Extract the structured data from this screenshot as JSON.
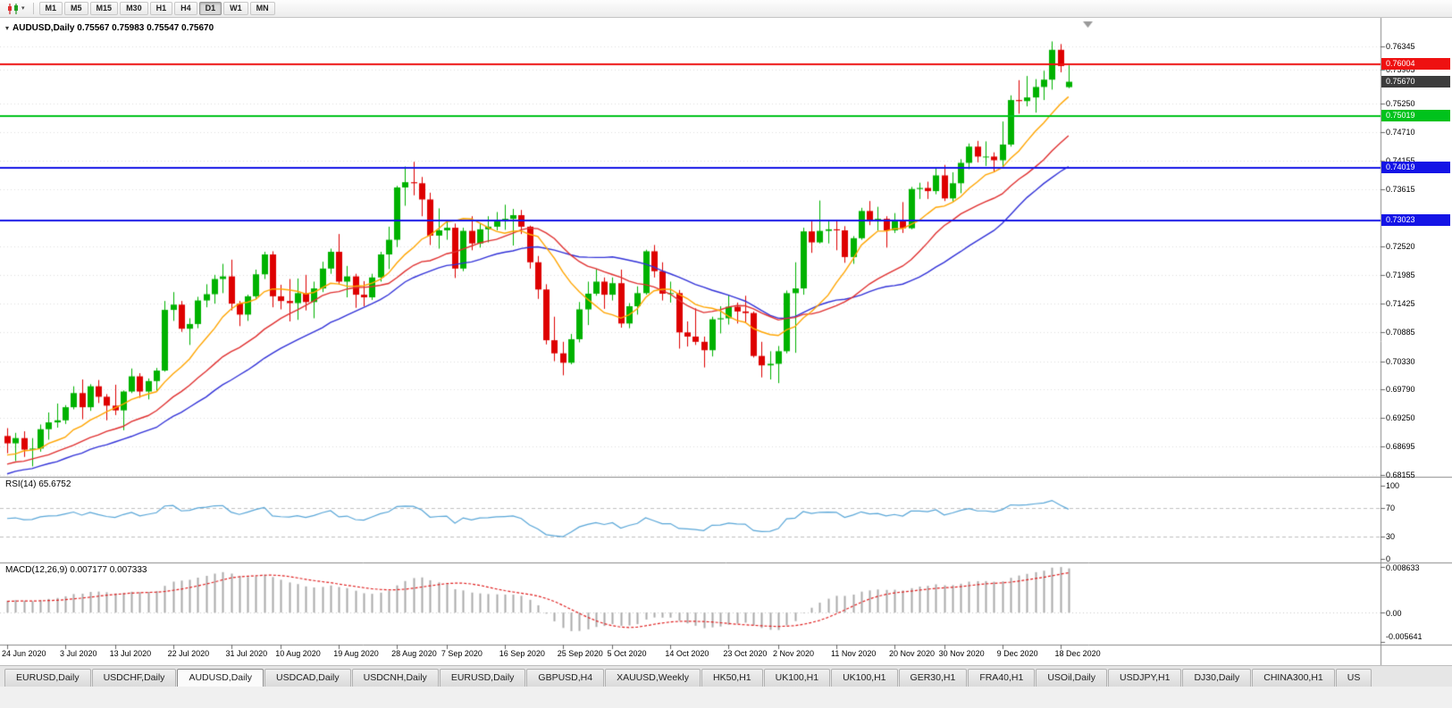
{
  "toolbar": {
    "chart_type_icon": "candlestick-chart-icon",
    "dropdown_icon": "chevron-down-icon",
    "timeframes": [
      "M1",
      "M5",
      "M15",
      "M30",
      "H1",
      "H4",
      "D1",
      "W1",
      "MN"
    ],
    "active_timeframe": "D1"
  },
  "chart": {
    "title": "AUDUSD,Daily 0.75567 0.75983 0.75547 0.75670",
    "symbol": "AUDUSD",
    "period": "Daily",
    "ohlc_display": {
      "open": "0.75567",
      "high": "0.75983",
      "low": "0.75547",
      "close": "0.75670"
    }
  },
  "price_axis": {
    "ticks": [
      "0.76345",
      "0.75905",
      "0.75250",
      "0.74710",
      "0.74155",
      "0.73615",
      "0.72520",
      "0.71985",
      "0.71425",
      "0.70885",
      "0.70330",
      "0.69790",
      "0.69250",
      "0.68695",
      "0.68155"
    ],
    "tags": [
      {
        "value": "0.76004",
        "color": "#EE1111",
        "type": "resistance-line"
      },
      {
        "value": "0.75670",
        "color": "#3C3C3C",
        "type": "current-price"
      },
      {
        "value": "0.75019",
        "color": "#00C21C",
        "type": "support-line"
      },
      {
        "value": "0.74019",
        "color": "#1414E6",
        "type": "support-line"
      },
      {
        "value": "0.73023",
        "color": "#1414E6",
        "type": "support-line"
      }
    ]
  },
  "time_axis": {
    "labels": [
      {
        "text": "24 Jun 2020",
        "i": 0
      },
      {
        "text": "3 Jul 2020",
        "i": 7
      },
      {
        "text": "13 Jul 2020",
        "i": 13
      },
      {
        "text": "22 Jul 2020",
        "i": 20
      },
      {
        "text": "31 Jul 2020",
        "i": 27
      },
      {
        "text": "10 Aug 2020",
        "i": 33
      },
      {
        "text": "19 Aug 2020",
        "i": 40
      },
      {
        "text": "28 Aug 2020",
        "i": 47
      },
      {
        "text": "7 Sep 2020",
        "i": 53
      },
      {
        "text": "16 Sep 2020",
        "i": 60
      },
      {
        "text": "25 Sep 2020",
        "i": 67
      },
      {
        "text": "5 Oct 2020",
        "i": 73
      },
      {
        "text": "14 Oct 2020",
        "i": 80
      },
      {
        "text": "23 Oct 2020",
        "i": 87
      },
      {
        "text": "2 Nov 2020",
        "i": 93
      },
      {
        "text": "11 Nov 2020",
        "i": 100
      },
      {
        "text": "20 Nov 2020",
        "i": 107
      },
      {
        "text": "30 Nov 2020",
        "i": 113
      },
      {
        "text": "9 Dec 2020",
        "i": 120
      },
      {
        "text": "18 Dec 2020",
        "i": 127
      }
    ]
  },
  "indicators": {
    "rsi": {
      "label": "RSI(14) 65.6752",
      "name": "RSI",
      "period": 14,
      "value": "65.6752",
      "levels": [
        "100",
        "70",
        "30",
        "0"
      ]
    },
    "macd": {
      "label": "MACD(12,26,9) 0.007177 0.007333",
      "name": "MACD",
      "params": "12,26,9",
      "value_main": "0.007177",
      "value_signal": "0.007333",
      "scale": [
        "0.008633",
        "0.00",
        "-0.005641"
      ]
    }
  },
  "tabs": {
    "items": [
      {
        "label": "EURUSD,Daily"
      },
      {
        "label": "USDCHF,Daily"
      },
      {
        "label": "AUDUSD,Daily",
        "active": true
      },
      {
        "label": "USDCAD,Daily"
      },
      {
        "label": "USDCNH,Daily"
      },
      {
        "label": "EURUSD,Daily"
      },
      {
        "label": "GBPUSD,H4"
      },
      {
        "label": "XAUUSD,Weekly"
      },
      {
        "label": "HK50,H1"
      },
      {
        "label": "UK100,H1"
      },
      {
        "label": "UK100,H1"
      },
      {
        "label": "GER30,H1"
      },
      {
        "label": "FRA40,H1"
      },
      {
        "label": "USOil,Daily"
      },
      {
        "label": "USDJPY,H1"
      },
      {
        "label": "DJ30,Daily"
      },
      {
        "label": "CHINA300,H1"
      },
      {
        "label": "US"
      }
    ]
  },
  "chart_data": {
    "type": "candlestick",
    "symbol": "AUDUSD",
    "timeframe": "Daily",
    "x_range": [
      "24 Jun 2020",
      "21 Dec 2020"
    ],
    "horizontal_lines": [
      {
        "price": 0.76004,
        "color": "#EE1111"
      },
      {
        "price": 0.75019,
        "color": "#00C21C"
      },
      {
        "price": 0.74019,
        "color": "#1414E6"
      },
      {
        "price": 0.73023,
        "color": "#1414E6"
      }
    ],
    "moving_averages": [
      {
        "period": 30,
        "color": "#3232D8"
      },
      {
        "period": 20,
        "color": "#E03030"
      },
      {
        "period": 10,
        "color": "#FFA500"
      }
    ],
    "up_color": "#00B200",
    "down_color": "#DE0000",
    "candles": [
      [
        0.689,
        0.6905,
        0.6857,
        0.6876
      ],
      [
        0.6876,
        0.6896,
        0.6842,
        0.6886
      ],
      [
        0.6886,
        0.6899,
        0.685,
        0.6864
      ],
      [
        0.6864,
        0.6886,
        0.6832,
        0.6866
      ],
      [
        0.6866,
        0.6912,
        0.686,
        0.6903
      ],
      [
        0.6903,
        0.6935,
        0.6883,
        0.6916
      ],
      [
        0.6916,
        0.6952,
        0.6906,
        0.692
      ],
      [
        0.692,
        0.6949,
        0.6913,
        0.6945
      ],
      [
        0.6945,
        0.6985,
        0.6941,
        0.6972
      ],
      [
        0.6972,
        0.6998,
        0.6922,
        0.6945
      ],
      [
        0.6945,
        0.6989,
        0.6938,
        0.6985
      ],
      [
        0.6985,
        0.6997,
        0.6953,
        0.6965
      ],
      [
        0.6965,
        0.697,
        0.692,
        0.6948
      ],
      [
        0.6948,
        0.6988,
        0.693,
        0.6939
      ],
      [
        0.6939,
        0.6977,
        0.6901,
        0.6975
      ],
      [
        0.6975,
        0.7019,
        0.6972,
        0.7004
      ],
      [
        0.7004,
        0.701,
        0.6963,
        0.6975
      ],
      [
        0.6975,
        0.7,
        0.696,
        0.6995
      ],
      [
        0.6995,
        0.702,
        0.6975,
        0.7015
      ],
      [
        0.7015,
        0.7148,
        0.7013,
        0.7131
      ],
      [
        0.7131,
        0.7165,
        0.711,
        0.7141
      ],
      [
        0.7141,
        0.7148,
        0.7089,
        0.7095
      ],
      [
        0.7095,
        0.7115,
        0.7064,
        0.7104
      ],
      [
        0.7104,
        0.7156,
        0.7096,
        0.7149
      ],
      [
        0.7149,
        0.718,
        0.7136,
        0.7161
      ],
      [
        0.7161,
        0.7198,
        0.7143,
        0.719
      ],
      [
        0.719,
        0.7219,
        0.7163,
        0.7195
      ],
      [
        0.7195,
        0.7227,
        0.713,
        0.7143
      ],
      [
        0.7143,
        0.7148,
        0.71,
        0.7122
      ],
      [
        0.7122,
        0.716,
        0.711,
        0.7157
      ],
      [
        0.7157,
        0.7208,
        0.7152,
        0.7199
      ],
      [
        0.7199,
        0.7242,
        0.719,
        0.7237
      ],
      [
        0.7237,
        0.7243,
        0.7136,
        0.7157
      ],
      [
        0.7157,
        0.7179,
        0.7132,
        0.7148
      ],
      [
        0.7148,
        0.719,
        0.7109,
        0.7144
      ],
      [
        0.7144,
        0.7191,
        0.7112,
        0.7163
      ],
      [
        0.7163,
        0.7198,
        0.713,
        0.7146
      ],
      [
        0.7146,
        0.7185,
        0.7115,
        0.7172
      ],
      [
        0.7172,
        0.7223,
        0.7165,
        0.721
      ],
      [
        0.721,
        0.7248,
        0.72,
        0.7242
      ],
      [
        0.7242,
        0.7276,
        0.718,
        0.7185
      ],
      [
        0.7185,
        0.7215,
        0.7155,
        0.7195
      ],
      [
        0.7195,
        0.72,
        0.7135,
        0.716
      ],
      [
        0.716,
        0.7186,
        0.7138,
        0.7155
      ],
      [
        0.7155,
        0.72,
        0.715,
        0.7193
      ],
      [
        0.7193,
        0.7242,
        0.7185,
        0.7237
      ],
      [
        0.7237,
        0.729,
        0.7209,
        0.7265
      ],
      [
        0.7265,
        0.7368,
        0.7251,
        0.7365
      ],
      [
        0.7365,
        0.7405,
        0.733,
        0.7375
      ],
      [
        0.7375,
        0.7414,
        0.735,
        0.7373
      ],
      [
        0.7373,
        0.7385,
        0.731,
        0.7342
      ],
      [
        0.7342,
        0.7355,
        0.7255,
        0.7273
      ],
      [
        0.7273,
        0.7325,
        0.7248,
        0.7283
      ],
      [
        0.7283,
        0.73,
        0.7265,
        0.7288
      ],
      [
        0.7288,
        0.7296,
        0.7192,
        0.721
      ],
      [
        0.721,
        0.7288,
        0.7205,
        0.7282
      ],
      [
        0.7282,
        0.731,
        0.7245,
        0.7258
      ],
      [
        0.7258,
        0.7295,
        0.725,
        0.7285
      ],
      [
        0.7285,
        0.731,
        0.726,
        0.729
      ],
      [
        0.729,
        0.7318,
        0.7283,
        0.73
      ],
      [
        0.73,
        0.7332,
        0.7284,
        0.7305
      ],
      [
        0.7305,
        0.7324,
        0.7254,
        0.7312
      ],
      [
        0.7312,
        0.7322,
        0.7276,
        0.729
      ],
      [
        0.729,
        0.7292,
        0.721,
        0.7222
      ],
      [
        0.7222,
        0.7234,
        0.7152,
        0.717
      ],
      [
        0.717,
        0.718,
        0.7065,
        0.7073
      ],
      [
        0.7073,
        0.7118,
        0.7033,
        0.7048
      ],
      [
        0.7048,
        0.707,
        0.7006,
        0.703
      ],
      [
        0.703,
        0.7085,
        0.7027,
        0.7075
      ],
      [
        0.7075,
        0.7146,
        0.7069,
        0.7132
      ],
      [
        0.7132,
        0.7185,
        0.7102,
        0.7162
      ],
      [
        0.7162,
        0.7209,
        0.7158,
        0.7185
      ],
      [
        0.7185,
        0.7193,
        0.7133,
        0.716
      ],
      [
        0.716,
        0.7193,
        0.7149,
        0.7182
      ],
      [
        0.7182,
        0.7208,
        0.7097,
        0.7105
      ],
      [
        0.7105,
        0.7144,
        0.7096,
        0.7138
      ],
      [
        0.7138,
        0.7176,
        0.7122,
        0.7163
      ],
      [
        0.7163,
        0.7246,
        0.716,
        0.7243
      ],
      [
        0.7243,
        0.7255,
        0.7193,
        0.7205
      ],
      [
        0.7205,
        0.7222,
        0.7149,
        0.7162
      ],
      [
        0.7162,
        0.7185,
        0.7145,
        0.7163
      ],
      [
        0.7163,
        0.7169,
        0.7057,
        0.7088
      ],
      [
        0.7088,
        0.7109,
        0.7061,
        0.708
      ],
      [
        0.708,
        0.7134,
        0.7064,
        0.707
      ],
      [
        0.707,
        0.708,
        0.7021,
        0.7054
      ],
      [
        0.7054,
        0.7118,
        0.7042,
        0.7113
      ],
      [
        0.7113,
        0.7138,
        0.7086,
        0.7115
      ],
      [
        0.7115,
        0.7159,
        0.7103,
        0.7137
      ],
      [
        0.7137,
        0.7145,
        0.7105,
        0.7128
      ],
      [
        0.7128,
        0.7158,
        0.7107,
        0.7125
      ],
      [
        0.7125,
        0.7128,
        0.704,
        0.7043
      ],
      [
        0.7043,
        0.707,
        0.7002,
        0.7025
      ],
      [
        0.7025,
        0.7052,
        0.6998,
        0.7028
      ],
      [
        0.7028,
        0.7062,
        0.6991,
        0.7052
      ],
      [
        0.7052,
        0.7168,
        0.7048,
        0.7163
      ],
      [
        0.7163,
        0.7222,
        0.7049,
        0.7172
      ],
      [
        0.7172,
        0.7288,
        0.716,
        0.7281
      ],
      [
        0.7281,
        0.73,
        0.724,
        0.726
      ],
      [
        0.726,
        0.734,
        0.7258,
        0.7282
      ],
      [
        0.7282,
        0.7302,
        0.7258,
        0.7285
      ],
      [
        0.7285,
        0.7302,
        0.7245,
        0.7283
      ],
      [
        0.7283,
        0.7291,
        0.7221,
        0.7232
      ],
      [
        0.7232,
        0.7272,
        0.7219,
        0.7268
      ],
      [
        0.7268,
        0.7326,
        0.7265,
        0.732
      ],
      [
        0.732,
        0.7339,
        0.7293,
        0.73
      ],
      [
        0.73,
        0.7328,
        0.7283,
        0.7305
      ],
      [
        0.7305,
        0.731,
        0.725,
        0.7283
      ],
      [
        0.7283,
        0.7316,
        0.7278,
        0.7302
      ],
      [
        0.7302,
        0.7337,
        0.7278,
        0.7287
      ],
      [
        0.7287,
        0.7366,
        0.7285,
        0.7362
      ],
      [
        0.7362,
        0.7374,
        0.7343,
        0.7364
      ],
      [
        0.7364,
        0.7376,
        0.7343,
        0.7358
      ],
      [
        0.7358,
        0.7404,
        0.7352,
        0.7388
      ],
      [
        0.7388,
        0.7408,
        0.7339,
        0.7344
      ],
      [
        0.7344,
        0.7394,
        0.7338,
        0.7373
      ],
      [
        0.7373,
        0.7419,
        0.7354,
        0.7412
      ],
      [
        0.7412,
        0.7449,
        0.74,
        0.7443
      ],
      [
        0.7443,
        0.7454,
        0.7413,
        0.7424
      ],
      [
        0.7424,
        0.7453,
        0.7406,
        0.7424
      ],
      [
        0.7424,
        0.7432,
        0.7395,
        0.7417
      ],
      [
        0.7417,
        0.7491,
        0.7401,
        0.7447
      ],
      [
        0.7447,
        0.7541,
        0.7443,
        0.7532
      ],
      [
        0.7532,
        0.757,
        0.7506,
        0.753
      ],
      [
        0.753,
        0.7578,
        0.752,
        0.7537
      ],
      [
        0.7537,
        0.7572,
        0.7508,
        0.7557
      ],
      [
        0.7557,
        0.7588,
        0.7532,
        0.7571
      ],
      [
        0.7571,
        0.7644,
        0.7552,
        0.7628
      ],
      [
        0.7628,
        0.7639,
        0.7585,
        0.7597
      ],
      [
        0.75567,
        0.75983,
        0.75547,
        0.7567
      ]
    ]
  }
}
